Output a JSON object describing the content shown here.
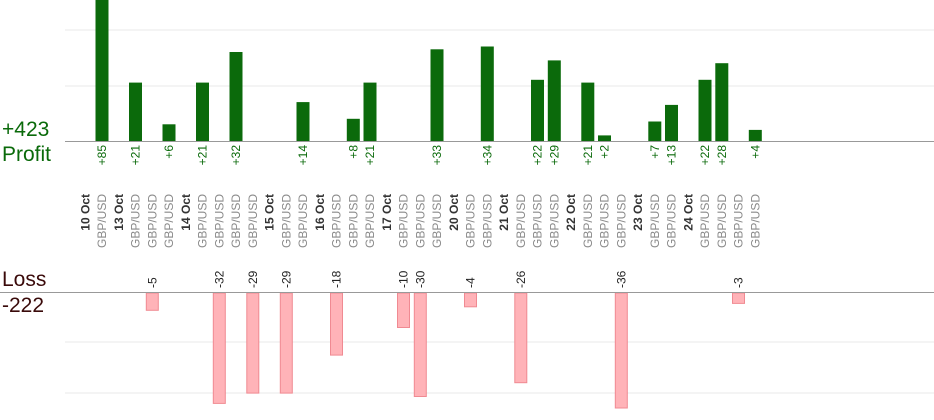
{
  "summary": {
    "profit_value": "+423",
    "profit_label": "Profit",
    "loss_label": "Loss",
    "loss_value": "-222"
  },
  "colors": {
    "profit_bar": "#0b6a0b",
    "loss_bar": "#ffb3b8",
    "profit_text": "#0a6a0a",
    "loss_text": "#3a0a0a",
    "pair_text": "#8a8a8a",
    "grid": "#e8e8e8",
    "baseline": "#999999"
  },
  "chart_data": {
    "type": "bar",
    "pair": "GBP/USD",
    "profit_axis_max": 50,
    "loss_axis_max": 40,
    "days": [
      {
        "date": "10 Oct",
        "trades": [
          85
        ]
      },
      {
        "date": "13 Oct",
        "trades": [
          21,
          -5,
          6
        ]
      },
      {
        "date": "14 Oct",
        "trades": [
          21,
          -32,
          32,
          -29
        ]
      },
      {
        "date": "15 Oct",
        "trades": [
          -29,
          14
        ]
      },
      {
        "date": "16 Oct",
        "trades": [
          -18,
          8,
          21
        ]
      },
      {
        "date": "17 Oct",
        "trades": [
          -10,
          -30,
          33
        ]
      },
      {
        "date": "20 Oct",
        "trades": [
          -4,
          34
        ]
      },
      {
        "date": "21 Oct",
        "trades": [
          -26,
          22,
          29
        ]
      },
      {
        "date": "22 Oct",
        "trades": [
          21,
          2,
          -36
        ]
      },
      {
        "date": "23 Oct",
        "trades": [
          7,
          13
        ]
      },
      {
        "date": "24 Oct",
        "trades": [
          22,
          28,
          -3,
          4
        ]
      }
    ]
  }
}
